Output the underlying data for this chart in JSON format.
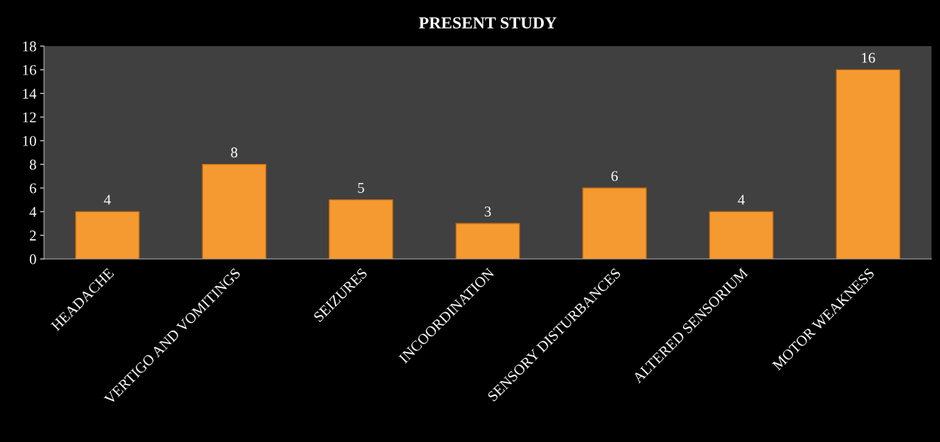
{
  "chart_data": {
    "type": "bar",
    "title": "PRESENT STUDY",
    "categories": [
      "HEADACHE",
      "VERTIGO AND VOMITINGS",
      "SEIZURES",
      "INCOORDINATION",
      "SENSORY DISTURBANCES",
      "ALTERED SENSORIUM",
      "MOTOR WEAKNESS"
    ],
    "values": [
      4,
      8,
      5,
      3,
      6,
      4,
      16
    ],
    "color": "#f59a30",
    "ylim": [
      0,
      18
    ],
    "yticks": [
      0,
      2,
      4,
      6,
      8,
      10,
      12,
      14,
      16,
      18
    ],
    "data_labels": true,
    "grid": false,
    "legend": false
  }
}
